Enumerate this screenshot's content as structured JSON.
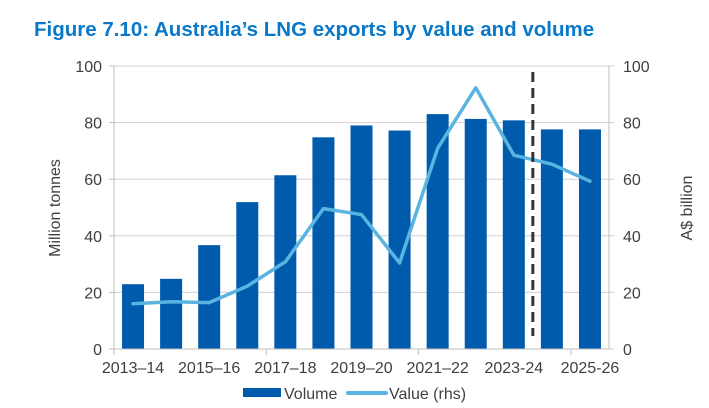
{
  "chart_data": {
    "type": "bar+line",
    "title": "Figure 7.10: Australia’s LNG exports by value and volume",
    "categories": [
      "2013–14",
      "",
      "2015–16",
      "",
      "2017–18",
      "",
      "2019–20",
      "",
      "2021–22",
      "",
      "2023-24",
      "",
      "2025-26"
    ],
    "ylabel": "Million tonnes",
    "y2label": "A$ billion",
    "ylim": [
      0,
      100
    ],
    "y2lim": [
      0,
      100
    ],
    "yticks": [
      0,
      20,
      40,
      60,
      80,
      100
    ],
    "grid": true,
    "legend_position": "bottom",
    "forecast_divider_after": "2023-24",
    "series": [
      {
        "name": "Volume",
        "type": "bar",
        "axis": "left",
        "color": "#005bac",
        "values": [
          22.9,
          24.8,
          36.7,
          51.9,
          61.4,
          74.8,
          79.0,
          77.2,
          83.0,
          81.3,
          80.8,
          77.6,
          77.6
        ]
      },
      {
        "name": "Value (rhs)",
        "type": "line",
        "axis": "right",
        "color": "#5ab4e0",
        "values": [
          16.0,
          16.7,
          16.4,
          22.2,
          30.8,
          49.6,
          47.5,
          30.4,
          70.9,
          92.3,
          68.5,
          65.3,
          59.3
        ]
      }
    ]
  }
}
